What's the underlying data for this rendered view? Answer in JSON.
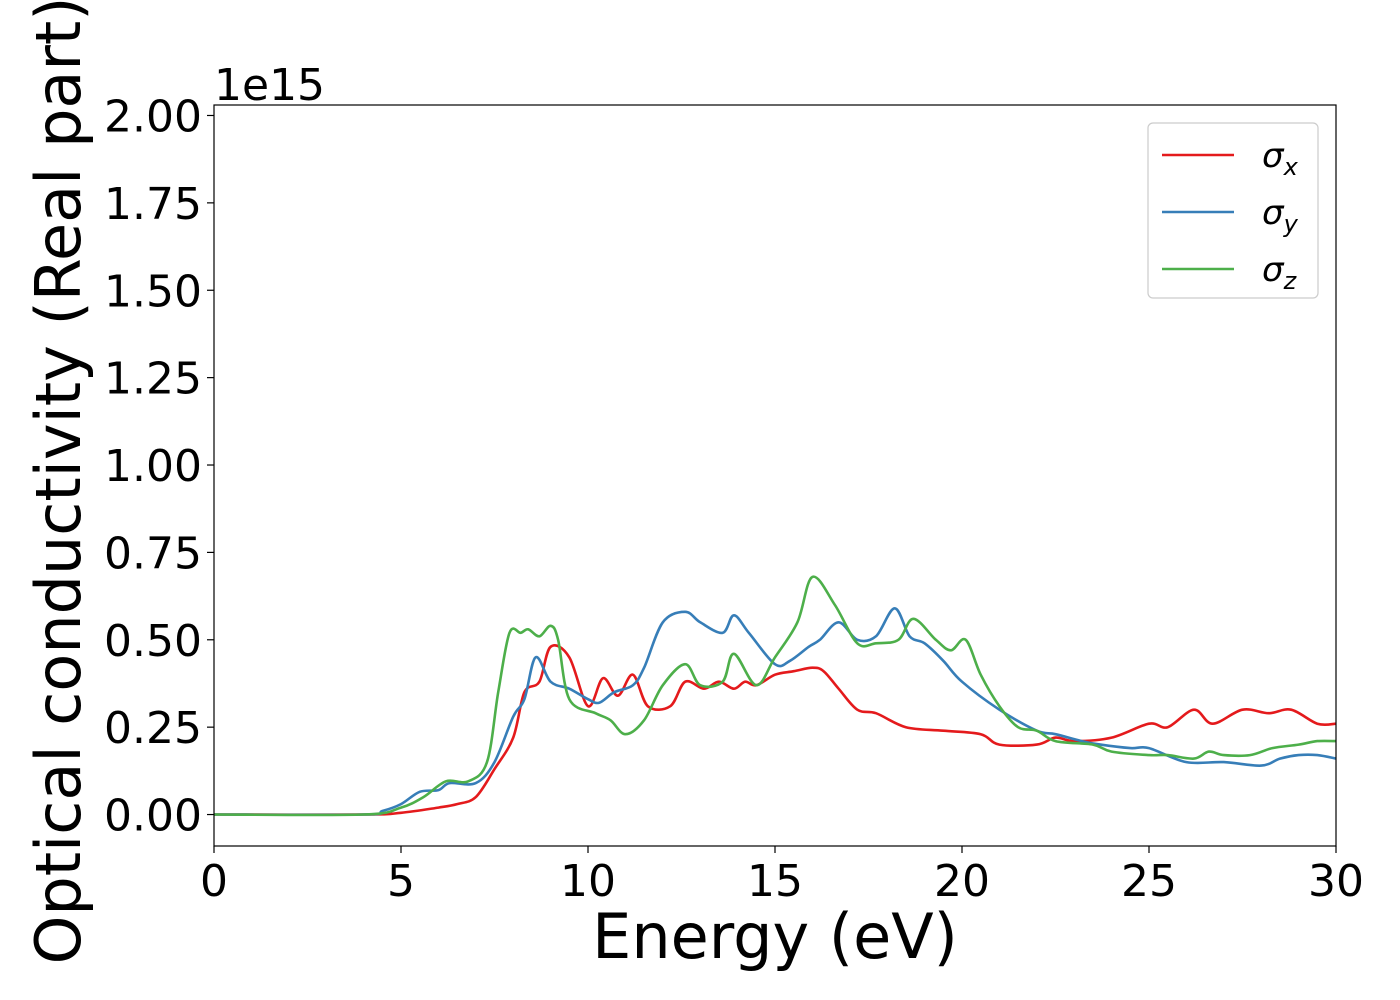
{
  "chart_data": {
    "type": "line",
    "title": "",
    "xlabel": "Energy (eV)",
    "ylabel": "Optical conductivity (Real part)",
    "y_offset_text": "1e15",
    "xlim": [
      0,
      30
    ],
    "ylim": [
      -0.09,
      2.03
    ],
    "xticks": [
      0,
      5,
      10,
      15,
      20,
      25,
      30
    ],
    "xtick_labels": [
      "0",
      "5",
      "10",
      "15",
      "20",
      "25",
      "30"
    ],
    "yticks": [
      0.0,
      0.25,
      0.5,
      0.75,
      1.0,
      1.25,
      1.5,
      1.75,
      2.0
    ],
    "ytick_labels": [
      "0.00",
      "0.25",
      "0.50",
      "0.75",
      "1.00",
      "1.25",
      "1.50",
      "1.75",
      "2.00"
    ],
    "grid": false,
    "legend_position": "top-right",
    "series": [
      {
        "name": "σx",
        "name_base": "σ",
        "name_sub": "x",
        "color": "#e41a1c",
        "points": [
          [
            0,
            0.0
          ],
          [
            4,
            0.0
          ],
          [
            5,
            0.005
          ],
          [
            6,
            0.02
          ],
          [
            6.5,
            0.03
          ],
          [
            7,
            0.05
          ],
          [
            7.5,
            0.13
          ],
          [
            8,
            0.22
          ],
          [
            8.3,
            0.35
          ],
          [
            8.7,
            0.38
          ],
          [
            9.0,
            0.48
          ],
          [
            9.5,
            0.45
          ],
          [
            10,
            0.31
          ],
          [
            10.4,
            0.39
          ],
          [
            10.8,
            0.34
          ],
          [
            11.2,
            0.4
          ],
          [
            11.6,
            0.31
          ],
          [
            12.2,
            0.31
          ],
          [
            12.6,
            0.38
          ],
          [
            13.1,
            0.36
          ],
          [
            13.5,
            0.38
          ],
          [
            13.9,
            0.36
          ],
          [
            14.2,
            0.38
          ],
          [
            14.5,
            0.37
          ],
          [
            15,
            0.4
          ],
          [
            15.5,
            0.41
          ],
          [
            16,
            0.42
          ],
          [
            16.3,
            0.41
          ],
          [
            16.7,
            0.36
          ],
          [
            17.2,
            0.3
          ],
          [
            17.7,
            0.29
          ],
          [
            18.5,
            0.25
          ],
          [
            19.5,
            0.24
          ],
          [
            20.5,
            0.23
          ],
          [
            21,
            0.2
          ],
          [
            22,
            0.2
          ],
          [
            22.5,
            0.22
          ],
          [
            23,
            0.21
          ],
          [
            24,
            0.22
          ],
          [
            25,
            0.26
          ],
          [
            25.5,
            0.25
          ],
          [
            26.2,
            0.3
          ],
          [
            26.7,
            0.26
          ],
          [
            27.5,
            0.3
          ],
          [
            28.2,
            0.29
          ],
          [
            28.8,
            0.3
          ],
          [
            29.5,
            0.26
          ],
          [
            30,
            0.26
          ]
        ]
      },
      {
        "name": "σy",
        "name_base": "σ",
        "name_sub": "y",
        "color": "#377eb8",
        "points": [
          [
            0,
            0.0
          ],
          [
            4,
            0.0
          ],
          [
            4.5,
            0.01
          ],
          [
            5,
            0.03
          ],
          [
            5.5,
            0.065
          ],
          [
            6,
            0.07
          ],
          [
            6.3,
            0.09
          ],
          [
            7,
            0.09
          ],
          [
            7.5,
            0.15
          ],
          [
            8,
            0.28
          ],
          [
            8.3,
            0.33
          ],
          [
            8.6,
            0.45
          ],
          [
            9,
            0.38
          ],
          [
            9.5,
            0.36
          ],
          [
            10,
            0.33
          ],
          [
            10.3,
            0.32
          ],
          [
            10.7,
            0.35
          ],
          [
            11.2,
            0.37
          ],
          [
            11.5,
            0.42
          ],
          [
            12,
            0.55
          ],
          [
            12.6,
            0.58
          ],
          [
            13,
            0.55
          ],
          [
            13.6,
            0.52
          ],
          [
            13.9,
            0.57
          ],
          [
            14.3,
            0.52
          ],
          [
            15,
            0.43
          ],
          [
            15.4,
            0.44
          ],
          [
            15.9,
            0.48
          ],
          [
            16.2,
            0.5
          ],
          [
            16.7,
            0.55
          ],
          [
            17.2,
            0.5
          ],
          [
            17.7,
            0.51
          ],
          [
            18.2,
            0.59
          ],
          [
            18.6,
            0.51
          ],
          [
            19,
            0.49
          ],
          [
            19.5,
            0.44
          ],
          [
            20,
            0.38
          ],
          [
            21,
            0.3
          ],
          [
            22,
            0.24
          ],
          [
            22.5,
            0.23
          ],
          [
            23.2,
            0.21
          ],
          [
            23.7,
            0.2
          ],
          [
            24.5,
            0.19
          ],
          [
            25,
            0.19
          ],
          [
            26,
            0.15
          ],
          [
            27,
            0.15
          ],
          [
            28,
            0.14
          ],
          [
            28.5,
            0.16
          ],
          [
            29,
            0.17
          ],
          [
            29.5,
            0.17
          ],
          [
            30,
            0.16
          ]
        ]
      },
      {
        "name": "σz",
        "name_base": "σ",
        "name_sub": "z",
        "color": "#4daf4a",
        "points": [
          [
            0,
            0.0
          ],
          [
            4,
            0.0
          ],
          [
            5,
            0.02
          ],
          [
            5.6,
            0.05
          ],
          [
            6.2,
            0.095
          ],
          [
            6.8,
            0.095
          ],
          [
            7.3,
            0.15
          ],
          [
            7.6,
            0.35
          ],
          [
            7.9,
            0.52
          ],
          [
            8.2,
            0.52
          ],
          [
            8.4,
            0.53
          ],
          [
            8.7,
            0.51
          ],
          [
            9,
            0.54
          ],
          [
            9.2,
            0.5
          ],
          [
            9.5,
            0.33
          ],
          [
            10.2,
            0.29
          ],
          [
            10.6,
            0.27
          ],
          [
            11,
            0.23
          ],
          [
            11.5,
            0.27
          ],
          [
            12,
            0.37
          ],
          [
            12.6,
            0.43
          ],
          [
            13,
            0.37
          ],
          [
            13.6,
            0.38
          ],
          [
            13.9,
            0.46
          ],
          [
            14.5,
            0.37
          ],
          [
            15,
            0.45
          ],
          [
            15.6,
            0.55
          ],
          [
            16,
            0.68
          ],
          [
            16.6,
            0.6
          ],
          [
            17.2,
            0.49
          ],
          [
            17.7,
            0.49
          ],
          [
            18.3,
            0.5
          ],
          [
            18.7,
            0.56
          ],
          [
            19.3,
            0.5
          ],
          [
            19.7,
            0.47
          ],
          [
            20.1,
            0.5
          ],
          [
            20.5,
            0.4
          ],
          [
            21,
            0.31
          ],
          [
            21.5,
            0.25
          ],
          [
            22,
            0.24
          ],
          [
            22.5,
            0.21
          ],
          [
            23.5,
            0.2
          ],
          [
            24,
            0.18
          ],
          [
            25,
            0.17
          ],
          [
            25.5,
            0.17
          ],
          [
            26.2,
            0.16
          ],
          [
            26.6,
            0.18
          ],
          [
            27,
            0.17
          ],
          [
            27.7,
            0.17
          ],
          [
            28.3,
            0.19
          ],
          [
            29,
            0.2
          ],
          [
            29.5,
            0.21
          ],
          [
            30,
            0.21
          ]
        ]
      }
    ]
  }
}
